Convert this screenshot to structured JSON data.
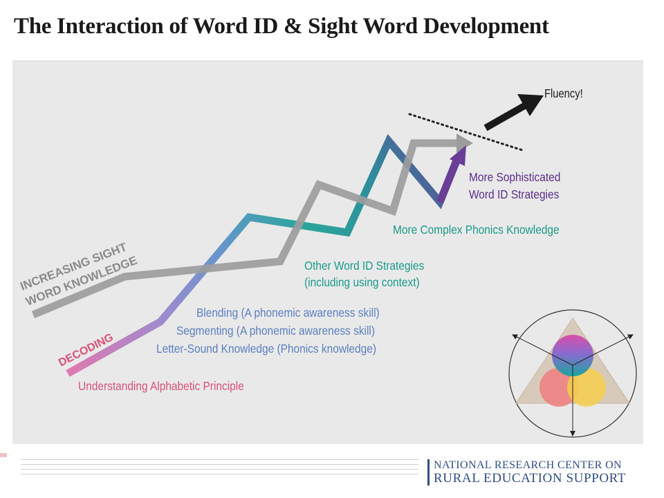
{
  "title": "The Interaction of Word ID & Sight Word Development",
  "labels": {
    "fluency": "Fluency!",
    "sophisticated_line1": "More Sophisticated",
    "sophisticated_line2": "Word ID Strategies",
    "complex_phonics": "More Complex Phonics Knowledge",
    "other_strategies_line1": "Other Word ID Strategies",
    "other_strategies_line2": "(including using context)",
    "blending": "Blending (A phonemic awareness skill)",
    "segmenting": "Segmenting (A phonemic awareness skill)",
    "letter_sound": "Letter-Sound Knowledge (Phonics knowledge)",
    "alphabetic": "Understanding Alphabetic Principle",
    "sight_line1": "INCREASING SIGHT",
    "sight_line2": "WORD KNOWLEDGE",
    "decoding": "DECODING"
  },
  "footer": {
    "org_line1": "NATIONAL RESEARCH CENTER ON",
    "org_line2": "RURAL EDUCATION SUPPORT"
  },
  "colors": {
    "sight_line": "#9a9a9a",
    "teal": "#1a9a8a",
    "purple": "#6a3d96",
    "blue": "#5b7fc0",
    "pink": "#d9507a",
    "brand": "#2f4e86"
  }
}
